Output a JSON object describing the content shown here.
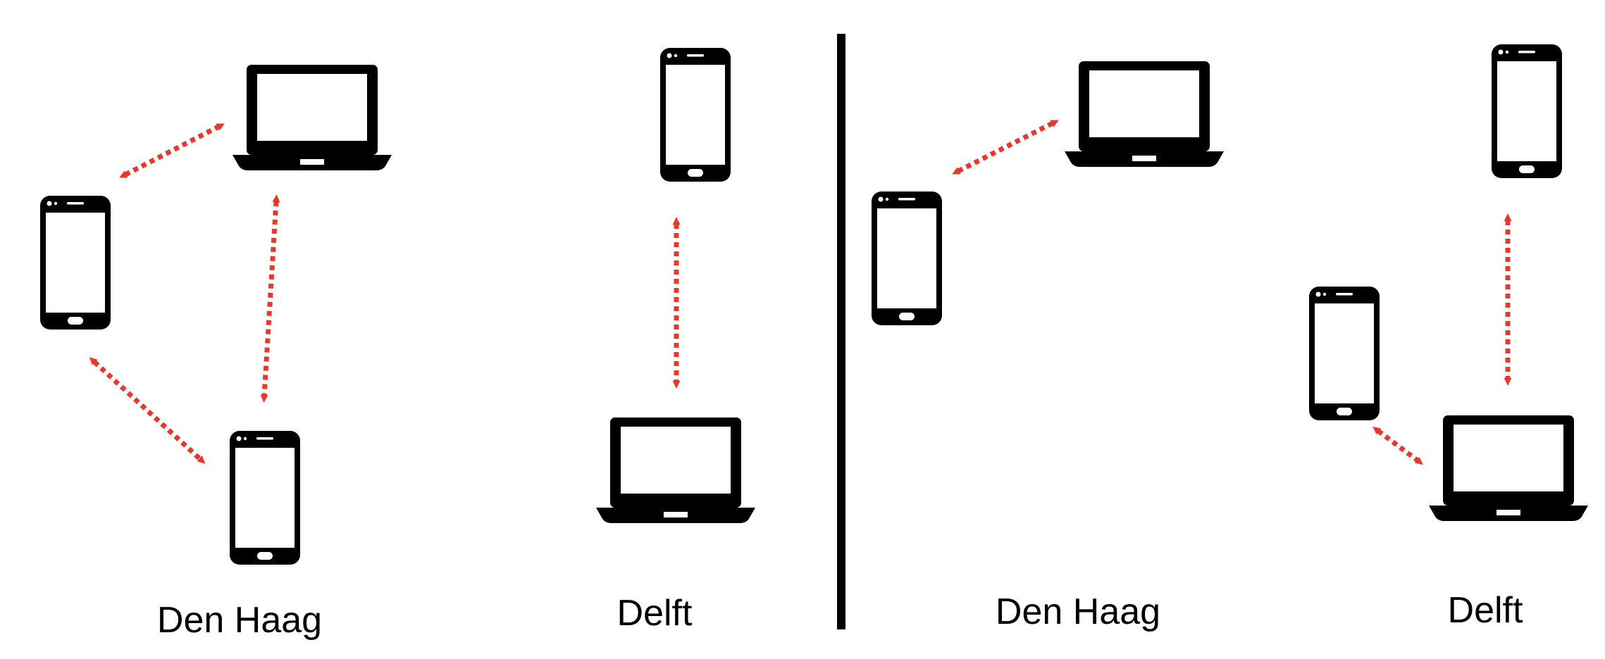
{
  "colors": {
    "device": "#000000",
    "screen": "#ffffff",
    "link": "#e8382b",
    "divider": "#000000"
  },
  "icons": {
    "phone": "smartphone-icon",
    "laptop": "laptop-icon"
  },
  "panels": [
    {
      "id": "left",
      "labels": [
        {
          "city": "Den Haag"
        },
        {
          "city": "Delft"
        }
      ]
    },
    {
      "id": "right",
      "labels": [
        {
          "city": "Den Haag"
        },
        {
          "city": "Delft"
        }
      ]
    }
  ]
}
